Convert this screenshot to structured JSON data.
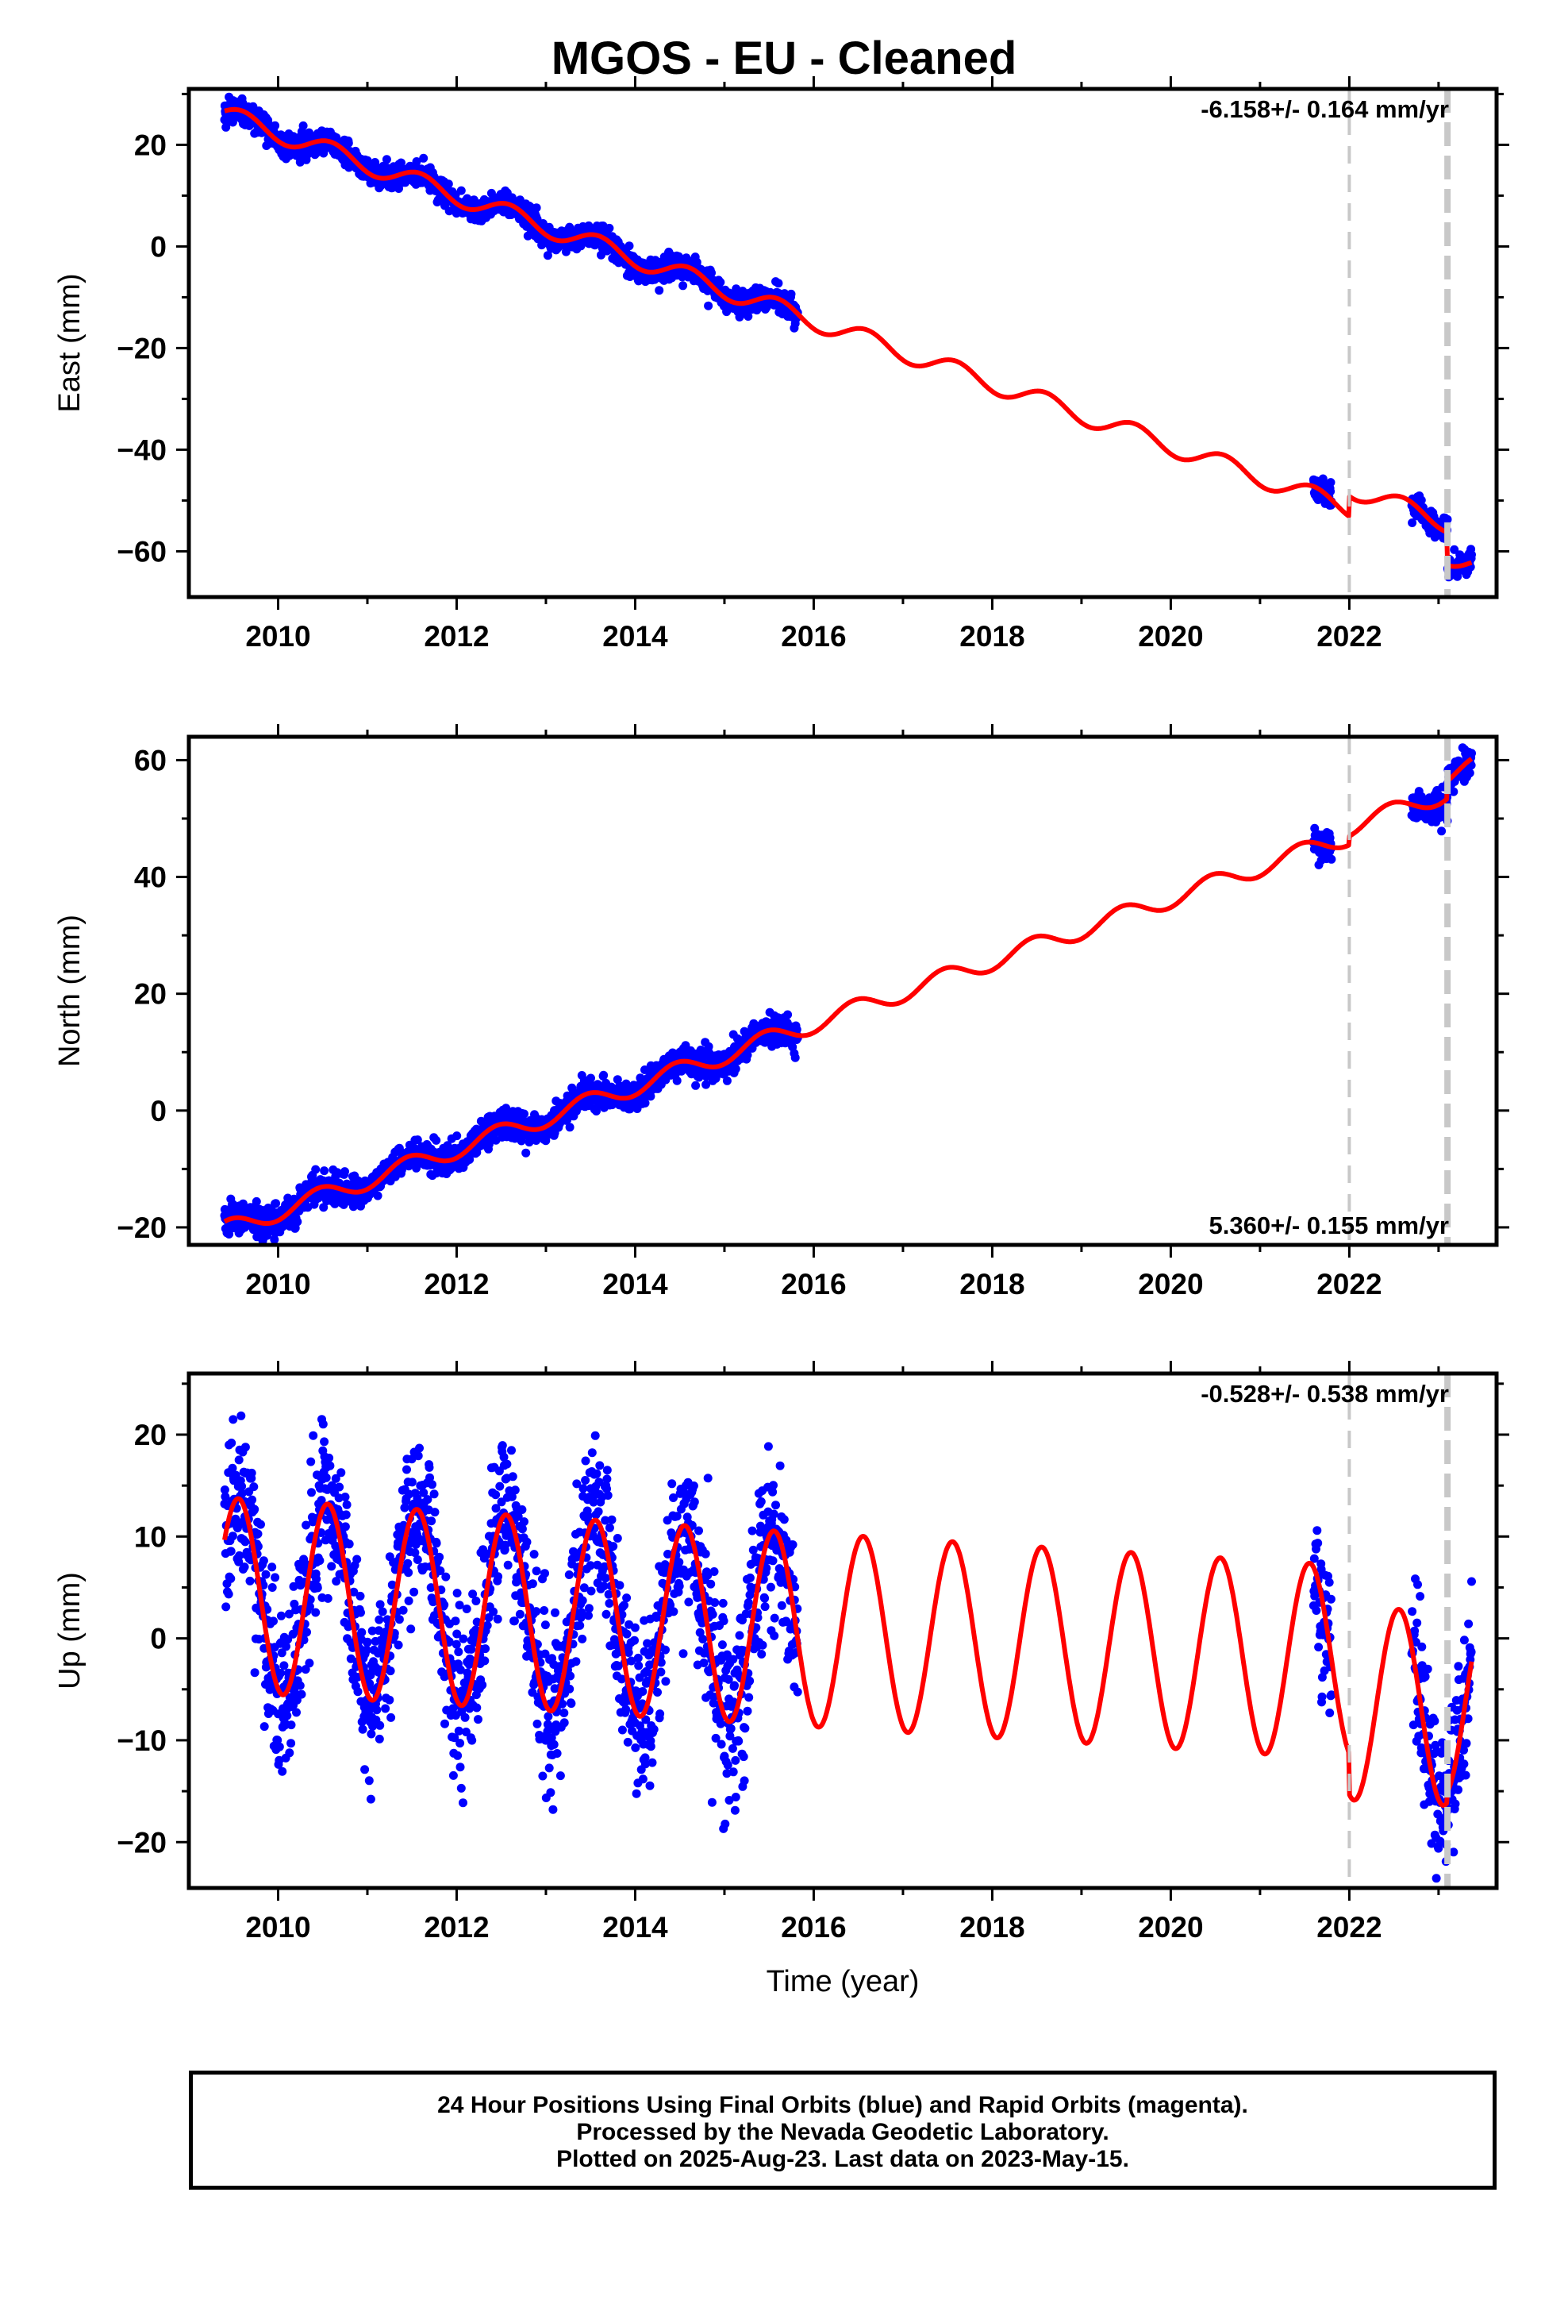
{
  "chart_title": "MGOS  - EU - Cleaned",
  "xlabel": "Time (year)",
  "footer": {
    "line1": "24 Hour Positions Using Final Orbits (blue) and Rapid Orbits (magenta).",
    "line2": "Processed by the Nevada Geodetic Laboratory.",
    "line3": "Plotted on 2025-Aug-23. Last data on 2023-May-15."
  },
  "colors": {
    "data": "#0000ff",
    "model": "#ff0000",
    "steps": "#c8c8c8",
    "axes": "#000000"
  },
  "chart_data": [
    {
      "type": "scatter",
      "component": "East",
      "ylabel": "East (mm)",
      "rate_label": "-6.158+/- 0.164 mm/yr",
      "rate_position": "top-right",
      "xlim": [
        2009.0,
        2023.65
      ],
      "ylim": [
        -69,
        31
      ],
      "xticks": [
        2010,
        2012,
        2014,
        2016,
        2018,
        2020,
        2022
      ],
      "yticks": [
        -60,
        -40,
        -20,
        0,
        20
      ],
      "grid": false,
      "step_lines": [
        2022.0,
        2023.1
      ],
      "model": {
        "intercept": 26.0,
        "rate": -6.158,
        "t0": 2009.4,
        "annual_amp": 1.9,
        "annual_phase": 0.35,
        "noise": 1.2,
        "offsets": [
          {
            "t": 2022.0,
            "dy": 4.0
          },
          {
            "t": 2023.1,
            "dy": -6.5
          }
        ]
      },
      "data_segments": [
        [
          2009.4,
          2015.82
        ],
        [
          2021.6,
          2021.8
        ],
        [
          2022.7,
          2023.37
        ]
      ]
    },
    {
      "type": "scatter",
      "component": "North",
      "ylabel": "North (mm)",
      "rate_label": "5.360+/- 0.155 mm/yr",
      "rate_position": "bottom-right",
      "xlim": [
        2009.0,
        2023.65
      ],
      "ylim": [
        -23,
        64
      ],
      "xticks": [
        2010,
        2012,
        2014,
        2016,
        2018,
        2020,
        2022
      ],
      "yticks": [
        -20,
        0,
        20,
        40,
        60
      ],
      "grid": false,
      "step_lines": [
        2022.0,
        2023.1
      ],
      "model": {
        "intercept": -20.5,
        "rate": 5.36,
        "t0": 2009.4,
        "annual_amp": 1.6,
        "annual_phase": 1.2,
        "noise": 1.3,
        "offsets": [
          {
            "t": 2022.0,
            "dy": 1.5
          },
          {
            "t": 2023.1,
            "dy": 3.0
          }
        ]
      },
      "data_segments": [
        [
          2009.4,
          2015.82
        ],
        [
          2021.6,
          2021.8
        ],
        [
          2022.7,
          2023.37
        ]
      ]
    },
    {
      "type": "scatter",
      "component": "Up",
      "ylabel": "Up (mm)",
      "rate_label": "-0.528+/- 0.538 mm/yr",
      "rate_position": "top-right",
      "xlim": [
        2009.0,
        2023.65
      ],
      "ylim": [
        -24.5,
        26
      ],
      "xticks": [
        2010,
        2012,
        2014,
        2016,
        2018,
        2020,
        2022
      ],
      "yticks": [
        -20,
        -10,
        0,
        10,
        20
      ],
      "grid": false,
      "step_lines": [
        2022.0,
        2023.1
      ],
      "model": {
        "intercept": 4.3,
        "rate": -0.528,
        "t0": 2009.4,
        "annual_amp": 9.5,
        "annual_phase": 0.6,
        "noise": 4.0,
        "offsets": [
          {
            "t": 2022.0,
            "dy": -4.0
          },
          {
            "t": 2023.1,
            "dy": 1.0
          }
        ]
      },
      "data_segments": [
        [
          2009.4,
          2015.82
        ],
        [
          2021.6,
          2021.8
        ],
        [
          2022.7,
          2023.37
        ]
      ]
    }
  ]
}
